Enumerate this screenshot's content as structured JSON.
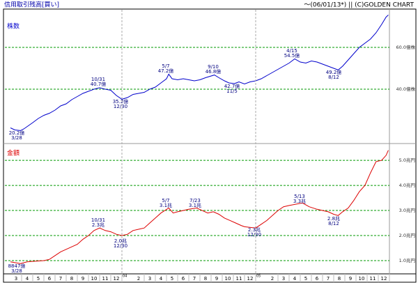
{
  "header": {
    "title": "信用取引残高[買い]",
    "note": "～(06/01/13*) || (C)GOLDEN CHART"
  },
  "chart_data": [
    {
      "type": "line",
      "label": "株数",
      "x": [
        0,
        0.4,
        0.9,
        1.2,
        1.6,
        2.0,
        2.5,
        3.0,
        3.5,
        4.0,
        4.5,
        5.0,
        5.5,
        6.0,
        6.5,
        7.0,
        7.5,
        8.0,
        8.5,
        9.0,
        9.5,
        10.0,
        10.5,
        11.0,
        11.5,
        12.0,
        12.5,
        13.0,
        13.5,
        14.0,
        14.2,
        14.5,
        15.0,
        15.5,
        16.0,
        16.5,
        17.0,
        17.5,
        18.3,
        18.7,
        19.2,
        19.6,
        20.1,
        20.5,
        21.0,
        21.5,
        22.0,
        22.5,
        23.0,
        23.5,
        24.0,
        24.5,
        25.0,
        25.5,
        26.0,
        26.5,
        27.0,
        27.5,
        28.0,
        28.5,
        29.0,
        29.4,
        29.8,
        30.3,
        30.8,
        31.3,
        31.8,
        32.3,
        32.8,
        33.3,
        33.7,
        33.9
      ],
      "series": [
        {
          "name": "株数",
          "color": "#0000cc",
          "values": [
            21.5,
            20.5,
            20.2,
            21,
            22.5,
            24,
            26,
            27.5,
            28.5,
            30,
            32,
            33,
            35,
            36.5,
            38,
            39,
            40,
            40.7,
            40,
            39.5,
            37,
            35.2,
            36,
            37.5,
            38,
            38.5,
            40,
            41,
            43,
            45,
            47.2,
            45,
            44.5,
            45,
            44.5,
            44,
            44.5,
            45.5,
            46.8,
            45.5,
            44,
            43,
            42.7,
            43.5,
            42.5,
            43.5,
            44,
            45,
            46.5,
            48,
            49.5,
            51,
            52.5,
            54.5,
            53,
            52.5,
            53.5,
            53,
            52,
            51,
            50,
            49.2,
            51,
            54,
            57,
            60,
            62,
            64,
            67,
            71,
            74.5,
            75.5
          ]
        }
      ],
      "xlim": [
        -0.5,
        34
      ],
      "ylim": [
        14,
        78
      ],
      "yticks": [
        {
          "value": 60,
          "label": "60.0億株"
        },
        {
          "value": 40,
          "label": "40.0億株"
        }
      ],
      "grid": true,
      "annotations": [
        [
          "20.2億",
          "3/28"
        ],
        [
          "10/31",
          "40.7億"
        ],
        [
          "35.2億",
          "12/30"
        ],
        [
          "5/7",
          "47.2億"
        ],
        [
          "9/10",
          "46.8億"
        ],
        [
          "42.7億",
          "11/5"
        ],
        [
          "4/15",
          "54.5億"
        ],
        [
          "49.2億",
          "8/12"
        ]
      ]
    },
    {
      "type": "line",
      "label": "金額",
      "x": [
        0,
        0.4,
        0.9,
        1.5,
        2.0,
        3.0,
        3.5,
        4.0,
        4.5,
        5.0,
        5.5,
        6.0,
        6.5,
        7.0,
        7.5,
        8.0,
        8.5,
        9.0,
        9.5,
        10.0,
        10.5,
        11.0,
        11.5,
        12.0,
        12.5,
        13.0,
        13.5,
        14.2,
        14.6,
        15.0,
        15.5,
        16.0,
        16.7,
        17.2,
        17.7,
        18.2,
        18.7,
        19.2,
        19.7,
        20.2,
        20.7,
        21.0,
        22.0,
        22.5,
        23.0,
        23.5,
        24.0,
        24.5,
        25.0,
        26.2,
        26.8,
        27.5,
        28.0,
        28.5,
        29.0,
        29.4,
        29.8,
        30.3,
        30.8,
        31.3,
        31.8,
        32.3,
        32.8,
        33.3,
        33.7,
        33.9
      ],
      "series": [
        {
          "name": "金額",
          "color": "#dd0000",
          "values": [
            0.95,
            0.92,
            0.8847,
            0.95,
            0.97,
            1.0,
            1.05,
            1.2,
            1.35,
            1.45,
            1.55,
            1.65,
            1.85,
            2.0,
            2.2,
            2.3,
            2.2,
            2.15,
            2.05,
            2.0,
            2.05,
            2.2,
            2.25,
            2.3,
            2.5,
            2.7,
            2.9,
            3.1,
            2.9,
            2.95,
            3.0,
            3.05,
            3.1,
            3.0,
            2.9,
            2.95,
            2.85,
            2.7,
            2.6,
            2.5,
            2.4,
            2.35,
            2.3,
            2.45,
            2.6,
            2.8,
            3.0,
            3.15,
            3.2,
            3.3,
            3.15,
            3.05,
            3.0,
            2.95,
            2.85,
            2.8,
            2.95,
            3.1,
            3.4,
            3.75,
            4.0,
            4.5,
            4.95,
            5.0,
            5.2,
            5.4
          ]
        }
      ],
      "xlim": [
        -0.5,
        34
      ],
      "ylim": [
        0.5,
        5.67
      ],
      "yticks": [
        {
          "value": 5,
          "label": "5.0兆円"
        },
        {
          "value": 4,
          "label": "4.0兆円"
        },
        {
          "value": 3,
          "label": "3.0兆円"
        },
        {
          "value": 2,
          "label": "2.0兆円"
        },
        {
          "value": 1,
          "label": "1.0兆円"
        }
      ],
      "grid": true,
      "xticks": [
        {
          "value": 0.5,
          "label": "3"
        },
        {
          "value": 1.5,
          "label": "4"
        },
        {
          "value": 2.5,
          "label": "5"
        },
        {
          "value": 3.5,
          "label": "6"
        },
        {
          "value": 4.5,
          "label": "7"
        },
        {
          "value": 5.5,
          "label": "8"
        },
        {
          "value": 6.5,
          "label": "9"
        },
        {
          "value": 7.5,
          "label": "10"
        },
        {
          "value": 8.5,
          "label": "11"
        },
        {
          "value": 9.5,
          "label": "12"
        },
        {
          "value": 11.5,
          "label": "2"
        },
        {
          "value": 12.5,
          "label": "3"
        },
        {
          "value": 13.5,
          "label": "4"
        },
        {
          "value": 14.5,
          "label": "5"
        },
        {
          "value": 15.5,
          "label": "6"
        },
        {
          "value": 16.5,
          "label": "7"
        },
        {
          "value": 17.5,
          "label": "8"
        },
        {
          "value": 18.5,
          "label": "9"
        },
        {
          "value": 19.5,
          "label": "10"
        },
        {
          "value": 20.5,
          "label": "11"
        },
        {
          "value": 21.5,
          "label": "12"
        },
        {
          "value": 23.5,
          "label": "2"
        },
        {
          "value": 24.5,
          "label": "3"
        },
        {
          "value": 25.5,
          "label": "4"
        },
        {
          "value": 26.5,
          "label": "5"
        },
        {
          "value": 27.5,
          "label": "6"
        },
        {
          "value": 28.5,
          "label": "7"
        },
        {
          "value": 29.5,
          "label": "8"
        },
        {
          "value": 30.5,
          "label": "9"
        },
        {
          "value": 31.5,
          "label": "10"
        },
        {
          "value": 32.5,
          "label": "11"
        },
        {
          "value": 33.5,
          "label": "12"
        }
      ],
      "year_ticks": [
        {
          "value": 10,
          "label": "04"
        },
        {
          "value": 22,
          "label": "05"
        }
      ],
      "annotations": [
        [
          "8847億",
          "3/28"
        ],
        [
          "10/31",
          "2.3兆"
        ],
        [
          "2.0兆",
          "12/30"
        ],
        [
          "5/7",
          "3.1兆"
        ],
        [
          "7/23",
          "3.1兆"
        ],
        [
          "2.3兆",
          "12/30"
        ],
        [
          "5/13",
          "3.3兆"
        ],
        [
          "2.8兆",
          "8/12"
        ]
      ]
    }
  ]
}
